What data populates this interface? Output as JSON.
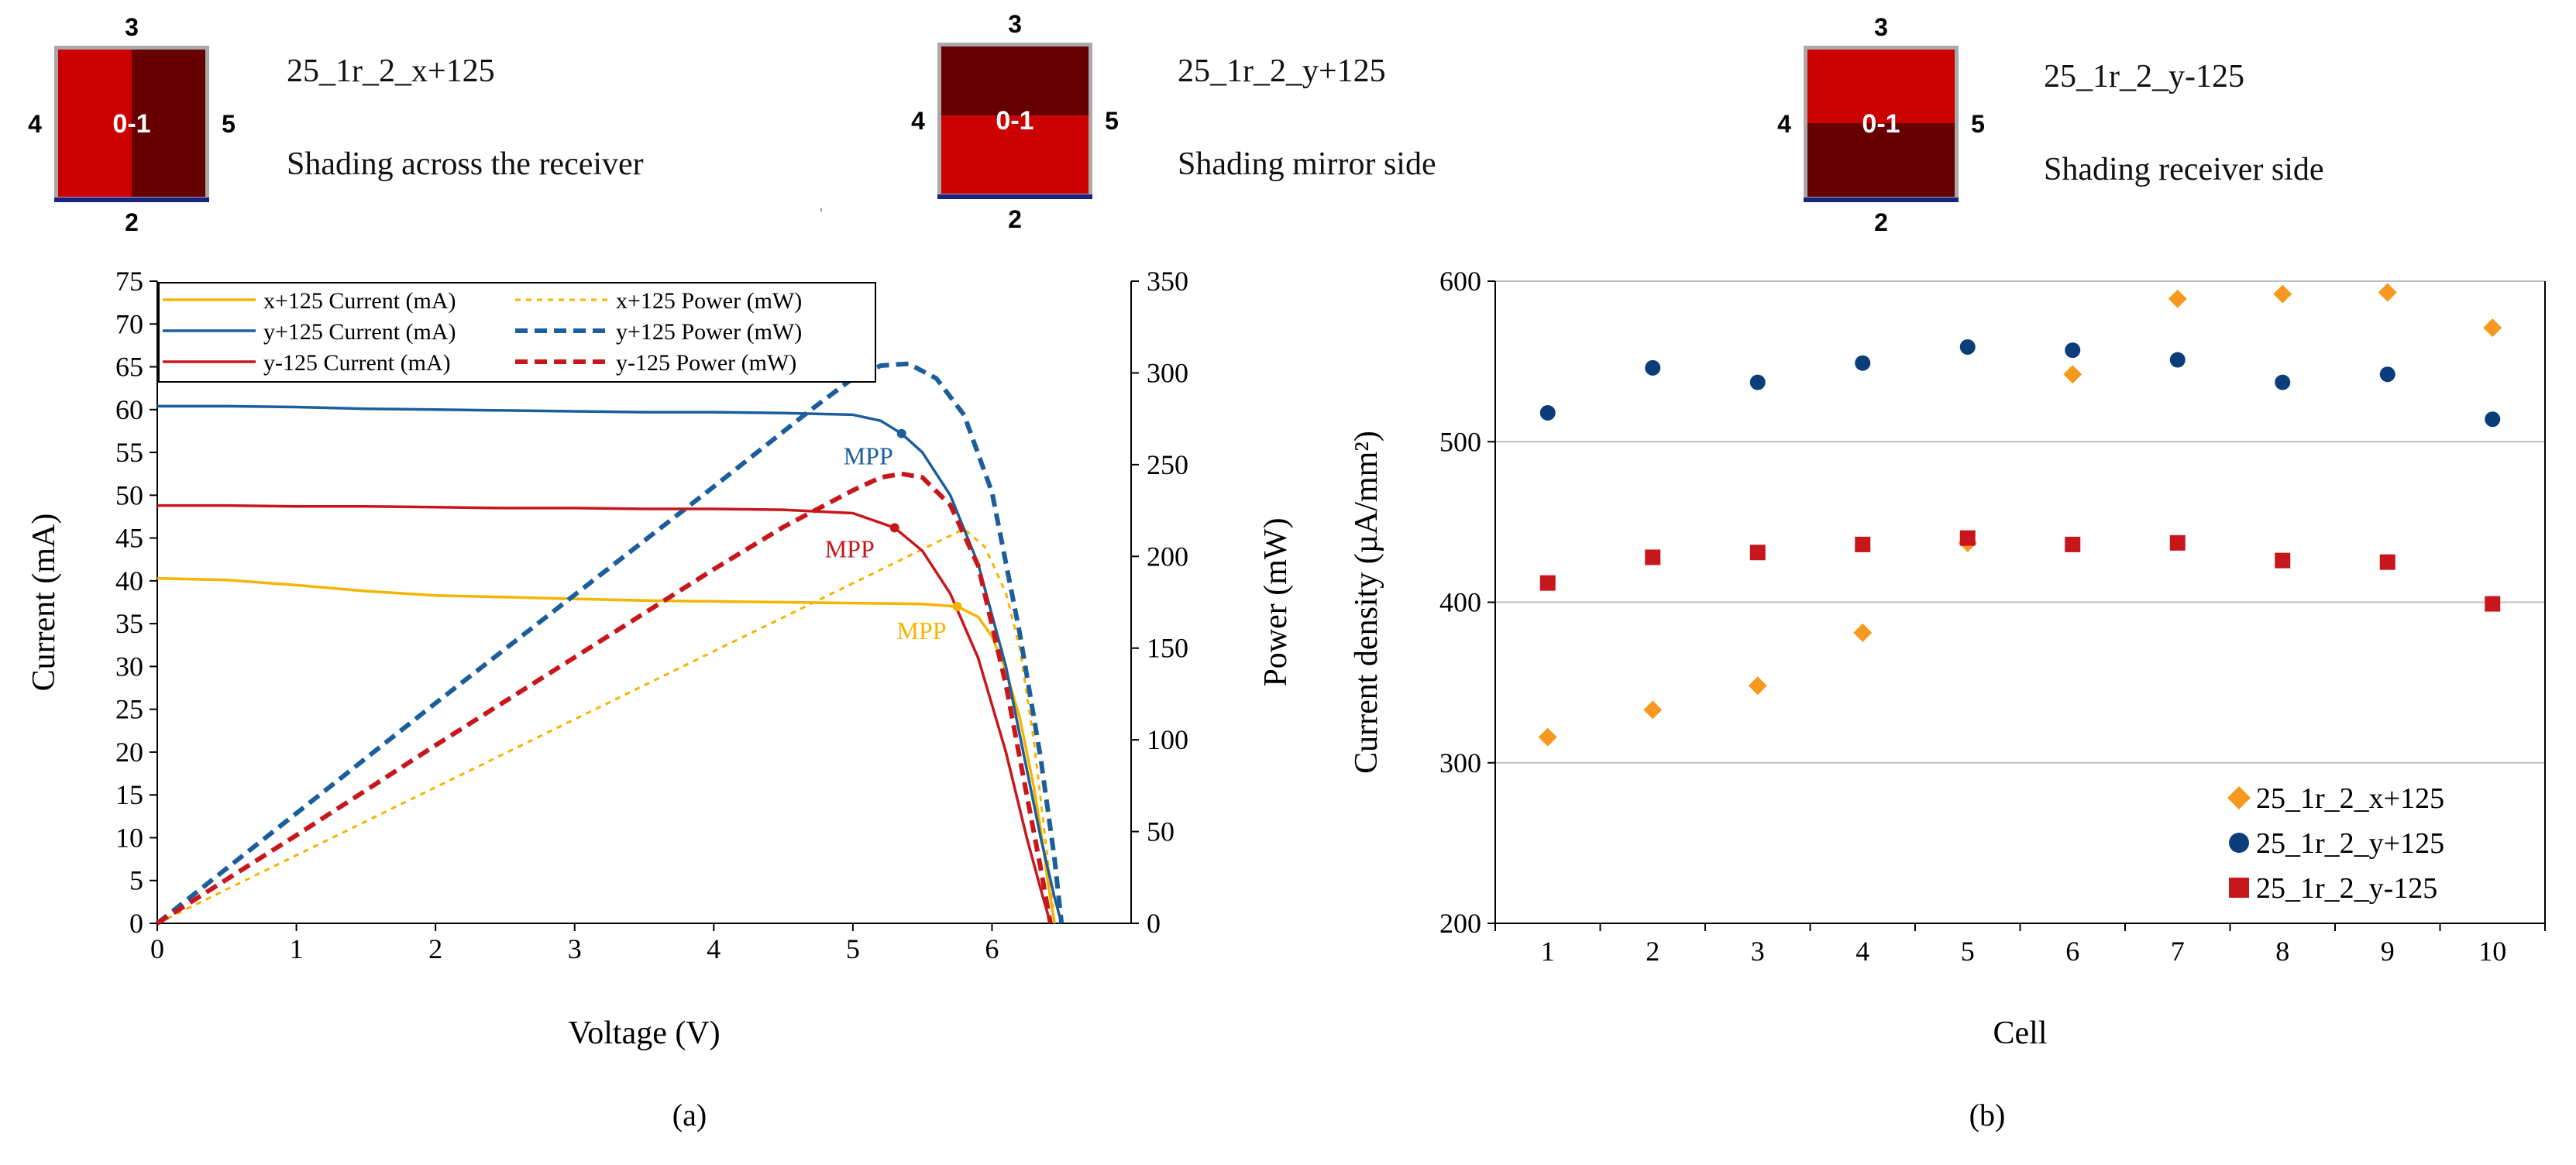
{
  "colors": {
    "x125": "#F5B400",
    "y125": "#1B5E9B",
    "ym125": "#C8161D",
    "scatter_x": "#F6991E",
    "scatter_y": "#0A3D7A",
    "scatter_ym": "#C8161D",
    "shade_light": "#CC0000",
    "shade_dark": "#660000",
    "frame": "#A9A9A9",
    "receiver": "#1A237E"
  },
  "diagrams": [
    {
      "id": "x+125",
      "top": "3",
      "left": "4",
      "right": "5",
      "bottom": "2",
      "center": "0-1",
      "layout": "split-vertical",
      "name": "25_1r_2_x+125",
      "description": "Shading across the receiver"
    },
    {
      "id": "y+125",
      "top": "3",
      "left": "4",
      "right": "5",
      "bottom": "2",
      "center": "0-1",
      "layout": "dark-top",
      "name": "25_1r_2_y+125",
      "description": "Shading mirror side"
    },
    {
      "id": "y-125",
      "top": "3",
      "left": "4",
      "right": "5",
      "bottom": "2",
      "center": "0-1",
      "layout": "dark-bottom",
      "name": "25_1r_2_y-125",
      "description": "Shading receiver side"
    }
  ],
  "stray_mark": "'",
  "captions": {
    "a": "(a)",
    "b": "(b)"
  },
  "chart_data": [
    {
      "type": "line",
      "xlabel": "Voltage (V)",
      "ylabel": "Current (mA)",
      "y2label": "Power (mW)",
      "xlim": [
        0,
        7
      ],
      "ylim": [
        0,
        75
      ],
      "y2lim": [
        0,
        350
      ],
      "xticks": [
        "0",
        "1",
        "2",
        "3",
        "4",
        "5",
        "6"
      ],
      "yticks": [
        "0",
        "5",
        "10",
        "15",
        "20",
        "25",
        "30",
        "35",
        "40",
        "45",
        "50",
        "55",
        "60",
        "65",
        "70",
        "75"
      ],
      "y2ticks": [
        "0",
        "50",
        "100",
        "150",
        "200",
        "250",
        "300",
        "350"
      ],
      "legend_position": "top-left",
      "legend": [
        {
          "label": "x+125 Current (mA)",
          "style": "solid",
          "color_key": "x125"
        },
        {
          "label": "x+125 Power (mW)",
          "style": "dotted",
          "color_key": "x125"
        },
        {
          "label": "y+125 Current (mA)",
          "style": "solid",
          "color_key": "y125"
        },
        {
          "label": "y+125 Power (mW)",
          "style": "dashed",
          "color_key": "y125"
        },
        {
          "label": "y-125 Current (mA)",
          "style": "solid",
          "color_key": "ym125"
        },
        {
          "label": "y-125 Power (mW)",
          "style": "dashed",
          "color_key": "ym125"
        }
      ],
      "series": [
        {
          "name": "x+125 Current (mA)",
          "axis": "left",
          "color_key": "x125",
          "x": [
            0,
            0.5,
            1.0,
            1.5,
            2.0,
            2.5,
            3.0,
            3.5,
            4.0,
            4.5,
            5.0,
            5.5,
            5.75,
            5.9,
            6.0,
            6.1,
            6.2,
            6.3,
            6.35,
            6.4,
            6.45
          ],
          "y": [
            40.3,
            40.1,
            39.5,
            38.8,
            38.3,
            38.1,
            37.9,
            37.7,
            37.6,
            37.5,
            37.4,
            37.3,
            37.0,
            35.8,
            33.5,
            29.5,
            24.0,
            16.0,
            11.0,
            5.0,
            0
          ]
        },
        {
          "name": "x+125 Power (mW)",
          "axis": "right",
          "color_key": "x125",
          "x": [
            0,
            5.8,
            5.95,
            6.1,
            6.2,
            6.3,
            6.4,
            6.45
          ],
          "y": [
            0,
            215,
            205,
            180,
            150,
            100,
            35,
            0
          ]
        },
        {
          "name": "y+125 Current (mA)",
          "axis": "left",
          "color_key": "y125",
          "x": [
            0,
            0.5,
            1.0,
            1.5,
            2.0,
            2.5,
            3.0,
            3.5,
            4.0,
            4.5,
            5.0,
            5.2,
            5.35,
            5.5,
            5.7,
            5.9,
            6.1,
            6.25,
            6.35,
            6.45,
            6.5
          ],
          "y": [
            60.4,
            60.4,
            60.3,
            60.1,
            60.0,
            59.9,
            59.8,
            59.7,
            59.7,
            59.6,
            59.4,
            58.7,
            57.2,
            55.0,
            50.0,
            42.0,
            30.0,
            18.0,
            10.0,
            3.0,
            0
          ]
        },
        {
          "name": "y+125 Power (mW)",
          "axis": "right",
          "color_key": "y125",
          "x": [
            0,
            1,
            2,
            3,
            4,
            4.7,
            5.0,
            5.2,
            5.4,
            5.6,
            5.8,
            6.0,
            6.2,
            6.35,
            6.45,
            6.5
          ],
          "y": [
            0,
            60,
            120,
            179,
            238,
            280,
            297,
            304,
            305,
            297,
            277,
            235,
            158,
            90,
            35,
            0
          ]
        },
        {
          "name": "y-125 Current (mA)",
          "axis": "left",
          "color_key": "ym125",
          "x": [
            0,
            0.5,
            1.0,
            1.5,
            2.0,
            2.5,
            3.0,
            3.5,
            4.0,
            4.5,
            5.0,
            5.3,
            5.5,
            5.7,
            5.9,
            6.1,
            6.25,
            6.35,
            6.42
          ],
          "y": [
            48.8,
            48.8,
            48.7,
            48.7,
            48.6,
            48.5,
            48.5,
            48.4,
            48.4,
            48.3,
            47.9,
            46.2,
            43.5,
            38.5,
            31.0,
            20.0,
            10.0,
            4.0,
            0
          ]
        },
        {
          "name": "y-125 Power (mW)",
          "axis": "right",
          "color_key": "ym125",
          "x": [
            0,
            1,
            2,
            3,
            4,
            4.5,
            4.8,
            5.0,
            5.2,
            5.35,
            5.5,
            5.7,
            5.9,
            6.1,
            6.25,
            6.35,
            6.42
          ],
          "y": [
            0,
            48,
            97,
            145,
            193,
            216,
            228,
            236,
            243,
            245,
            243,
            228,
            195,
            130,
            70,
            30,
            0
          ]
        }
      ],
      "mpp": [
        {
          "label": "MPP",
          "series": "y+125",
          "x": 5.35,
          "y": 57.2,
          "color_key": "y125"
        },
        {
          "label": "MPP",
          "series": "y-125",
          "x": 5.3,
          "y": 46.2,
          "color_key": "ym125"
        },
        {
          "label": "MPP",
          "series": "x+125",
          "x": 5.75,
          "y": 37.0,
          "color_key": "x125"
        }
      ]
    },
    {
      "type": "scatter",
      "xlabel": "Cell",
      "ylabel": "Current density (µA/mm²)",
      "xlim": [
        0.5,
        10.5
      ],
      "ylim": [
        200,
        600
      ],
      "xticks": [
        "1",
        "2",
        "3",
        "4",
        "5",
        "6",
        "7",
        "8",
        "9",
        "10"
      ],
      "yticks": [
        "200",
        "300",
        "400",
        "500",
        "600"
      ],
      "gridlines": "horizontal",
      "legend_position": "bottom-right",
      "series": [
        {
          "name": "25_1r_2_x+125",
          "marker": "diamond",
          "color_key": "scatter_x",
          "x": [
            1,
            2,
            3,
            4,
            5,
            6,
            7,
            8,
            9,
            10
          ],
          "values": [
            316,
            333,
            348,
            381,
            437,
            542,
            589,
            592,
            593,
            571
          ]
        },
        {
          "name": "25_1r_2_y+125",
          "marker": "circle",
          "color_key": "scatter_y",
          "x": [
            1,
            2,
            3,
            4,
            5,
            6,
            7,
            8,
            9,
            10
          ],
          "values": [
            518,
            546,
            537,
            549,
            559,
            557,
            551,
            537,
            542,
            514
          ]
        },
        {
          "name": "25_1r_2_y-125",
          "marker": "square",
          "color_key": "scatter_ym",
          "x": [
            1,
            2,
            3,
            4,
            5,
            6,
            7,
            8,
            9,
            10
          ],
          "values": [
            412,
            428,
            431,
            436,
            440,
            436,
            437,
            426,
            425,
            399
          ]
        }
      ]
    }
  ]
}
